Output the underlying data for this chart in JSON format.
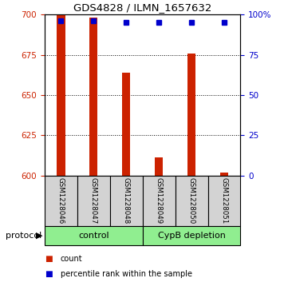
{
  "title": "GDS4828 / ILMN_1657632",
  "samples": [
    "GSM1228046",
    "GSM1228047",
    "GSM1228048",
    "GSM1228049",
    "GSM1228050",
    "GSM1228051"
  ],
  "groups": [
    {
      "label": "control",
      "color": "#90ee90",
      "start": 0,
      "end": 3
    },
    {
      "label": "CypB depletion",
      "color": "#90ee90",
      "start": 3,
      "end": 6
    }
  ],
  "red_values": [
    700,
    698,
    664,
    611,
    676,
    602
  ],
  "blue_percentiles": [
    96,
    96,
    95,
    95,
    95,
    95
  ],
  "ymin": 600,
  "ymax": 700,
  "yticks_left": [
    600,
    625,
    650,
    675,
    700
  ],
  "yticks_right": [
    0,
    25,
    50,
    75,
    100
  ],
  "bar_color": "#cc2200",
  "dot_color": "#0000cc",
  "sample_box_color": "#d3d3d3",
  "protocol_label": "protocol",
  "bar_width": 0.25,
  "legend_items": [
    {
      "label": "count",
      "color": "#cc2200"
    },
    {
      "label": "percentile rank within the sample",
      "color": "#0000cc"
    }
  ]
}
